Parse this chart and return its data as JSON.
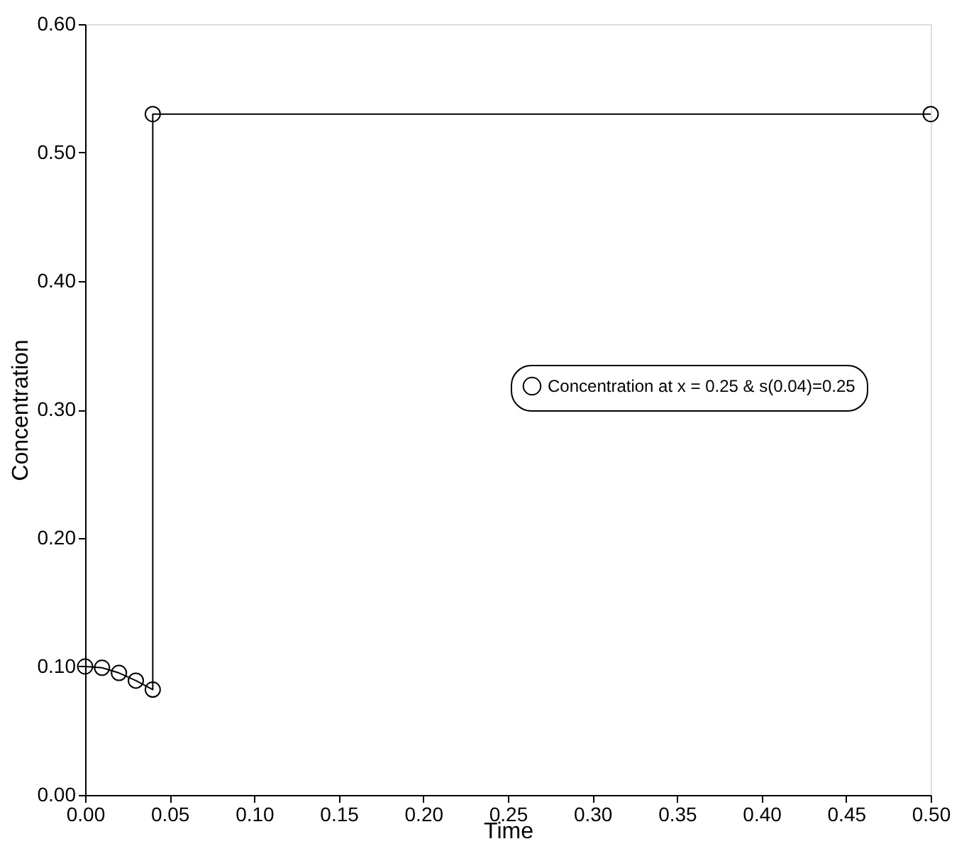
{
  "chart_data": {
    "type": "line",
    "xlabel": "Time",
    "ylabel": "Concentration",
    "x": [
      0.0,
      0.01,
      0.02,
      0.03,
      0.04,
      0.04,
      0.5
    ],
    "series": [
      {
        "name": "Concentration at x = 0.25 & s(0.04)=0.25",
        "color": "#000000",
        "values": [
          0.1,
          0.099,
          0.095,
          0.089,
          0.082,
          0.53,
          0.53
        ]
      }
    ],
    "xlim": [
      0,
      0.5
    ],
    "xticks": [
      {
        "value": 0,
        "label": "0.00"
      },
      0.05,
      {
        "value": 0.1,
        "label": "0.10"
      },
      0.15,
      {
        "value": 0.2,
        "label": "0.20"
      },
      0.25,
      {
        "value": 0.3,
        "label": "0.30"
      },
      0.35,
      {
        "value": 0.4,
        "label": "0.40"
      },
      0.45,
      {
        "value": 0.5,
        "label": "0.50"
      }
    ],
    "ylim": [
      0,
      0.6
    ],
    "yticks": [
      {
        "value": 0,
        "label": "0.00"
      },
      {
        "value": 0.1,
        "label": "0.10"
      },
      {
        "value": 0.2,
        "label": "0.20"
      },
      {
        "value": 0.3,
        "label": "0.30"
      },
      {
        "value": 0.4,
        "label": "0.40"
      },
      {
        "value": 0.5,
        "label": "0.50"
      },
      {
        "value": 0.6,
        "label": "0.60"
      }
    ],
    "marker": "circle",
    "line_style": "solid",
    "legend": "right",
    "grid": false
  }
}
